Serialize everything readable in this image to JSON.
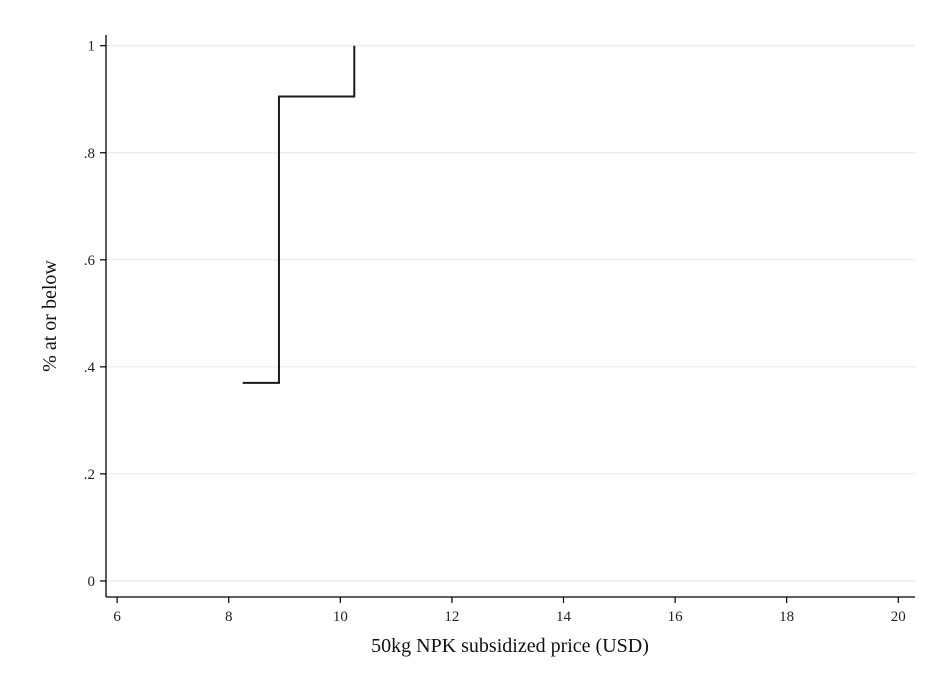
{
  "chart_data": {
    "type": "line",
    "title": "",
    "xlabel": "50kg NPK subsidized price (USD)",
    "ylabel": "% at or below",
    "xlim": [
      5.8,
      20.3
    ],
    "ylim": [
      -0.03,
      1.02
    ],
    "xticks": [
      6,
      8,
      10,
      12,
      14,
      16,
      18,
      20
    ],
    "yticks": [
      0,
      0.2,
      0.4,
      0.6,
      0.8,
      1
    ],
    "xtick_labels": [
      "6",
      "8",
      "10",
      "12",
      "14",
      "16",
      "18",
      "20"
    ],
    "ytick_labels": [
      "0",
      ".2",
      ".4",
      ".6",
      ".8",
      "1"
    ],
    "grid": true,
    "legend": "none",
    "series": [
      {
        "step": "post",
        "color": "#1a1a1a",
        "x": [
          8.25,
          8.9,
          10.25,
          10.25
        ],
        "y": [
          0.37,
          0.905,
          1.0,
          1.0
        ]
      }
    ]
  }
}
